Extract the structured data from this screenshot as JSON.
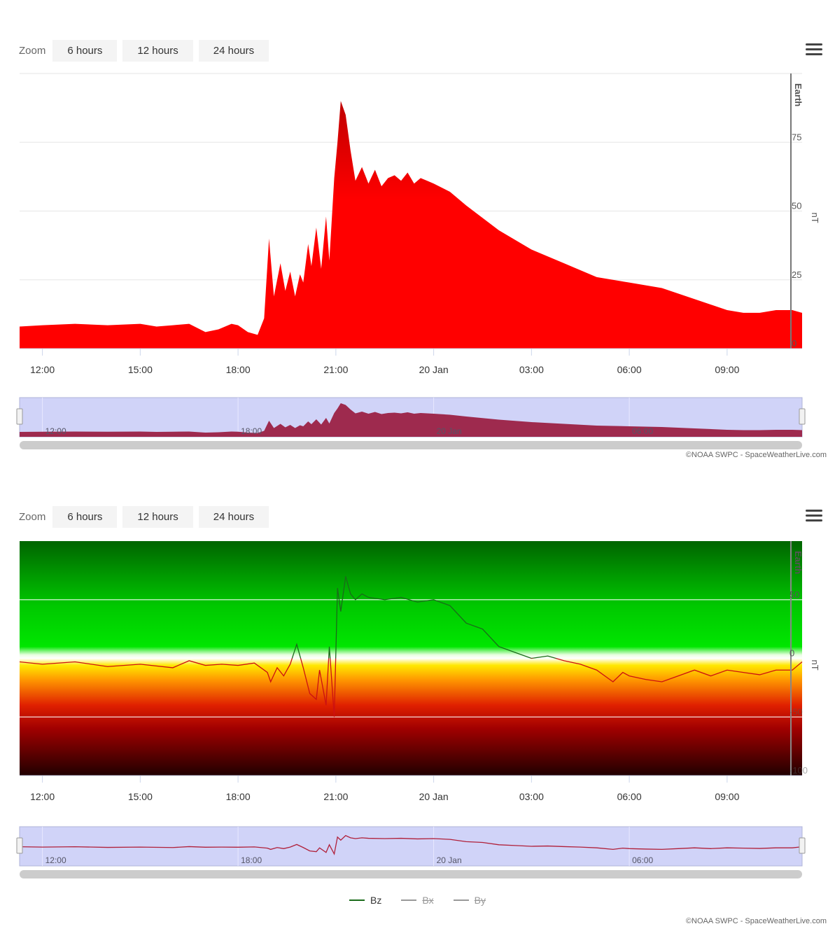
{
  "zoom": {
    "label": "Zoom",
    "buttons": [
      "6 hours",
      "12 hours",
      "24 hours"
    ]
  },
  "credit": "©NOAA SWPC - SpaceWeatherLive.com",
  "x_axis": {
    "ticks": [
      "12:00",
      "15:00",
      "18:00",
      "21:00",
      "20 Jan",
      "03:00",
      "06:00",
      "09:00"
    ],
    "navigator_labels": [
      "12:00",
      "18:00",
      "20 Jan",
      "06:00"
    ]
  },
  "colors": {
    "bt_fill": "#ff0000",
    "bt_fill_dark": "#c00000",
    "navigator_bt": "#9e2a4e",
    "navigator_bg": "#d0d3f8",
    "bz_positive": "#1a6b1a",
    "bz_negative": "#cc1111"
  },
  "chart_data": [
    {
      "type": "area",
      "title": "",
      "plot_band_label": "Earth",
      "ylabel": "nT",
      "ylim": [
        0,
        100
      ],
      "yticks": [
        "0",
        "25",
        "50",
        "75"
      ],
      "x_range_hours": [
        11.3,
        35.3
      ],
      "series": [
        {
          "name": "",
          "x_hours": [
            11.3,
            12,
            13,
            14,
            15,
            15.5,
            16,
            16.5,
            17,
            17.4,
            17.8,
            18,
            18.3,
            18.6,
            18.8,
            18.95,
            19.1,
            19.3,
            19.45,
            19.6,
            19.75,
            19.9,
            20.0,
            20.15,
            20.25,
            20.4,
            20.55,
            20.7,
            20.8,
            20.95,
            21.05,
            21.15,
            21.3,
            21.45,
            21.6,
            21.8,
            22,
            22.2,
            22.4,
            22.6,
            22.8,
            23,
            23.2,
            23.4,
            23.6,
            23.8,
            24,
            24.5,
            25,
            26,
            27,
            28,
            29,
            30,
            31,
            32,
            33,
            33.5,
            34,
            34.5,
            35,
            35.3
          ],
          "values": [
            8,
            8.5,
            9,
            8.5,
            9,
            8,
            8.5,
            9,
            6,
            7,
            9,
            8.5,
            6,
            5,
            11,
            40,
            19,
            31,
            21,
            28,
            19,
            27,
            24,
            38,
            30,
            44,
            29,
            48,
            32,
            62,
            75,
            90,
            85,
            72,
            61,
            66,
            60,
            65,
            59,
            62,
            63,
            61,
            64,
            60,
            62,
            61,
            60,
            57,
            52,
            43,
            36,
            31,
            26,
            24,
            22,
            18,
            14,
            13,
            13,
            14,
            14,
            13
          ]
        }
      ]
    },
    {
      "type": "line",
      "title": "",
      "plot_band_label": "Earth",
      "ylabel": "nT",
      "ylim": [
        -100,
        100
      ],
      "yticks": [
        "-100",
        "-50",
        "0",
        "50"
      ],
      "x_range_hours": [
        11.3,
        35.3
      ],
      "background": "green above 0, yellow/orange/red below 0",
      "series": [
        {
          "name": "Bz",
          "x_hours": [
            11.3,
            12,
            13,
            14,
            15,
            16,
            16.5,
            17,
            17.5,
            18,
            18.5,
            18.9,
            19.0,
            19.2,
            19.4,
            19.6,
            19.8,
            20.0,
            20.2,
            20.4,
            20.5,
            20.7,
            20.8,
            20.95,
            21.05,
            21.15,
            21.3,
            21.45,
            21.6,
            21.8,
            22,
            22.5,
            23,
            23.5,
            24,
            24.5,
            25,
            25.5,
            26,
            26.5,
            27,
            27.5,
            28,
            28.5,
            29,
            29.5,
            29.8,
            30,
            30.5,
            31,
            31.5,
            32,
            32.5,
            33,
            33.5,
            34,
            34.5,
            35,
            35.3
          ],
          "values": [
            -3,
            -5,
            -3,
            -7,
            -5,
            -8,
            -2,
            -6,
            -5,
            -6,
            -4,
            -12,
            -20,
            -8,
            -15,
            -5,
            12,
            -8,
            -30,
            -35,
            -10,
            -40,
            10,
            -50,
            60,
            40,
            70,
            55,
            50,
            55,
            52,
            50,
            52,
            48,
            50,
            45,
            30,
            25,
            10,
            5,
            0,
            2,
            -2,
            -5,
            -10,
            -20,
            -12,
            -15,
            -18,
            -20,
            -15,
            -10,
            -15,
            -10,
            -12,
            -14,
            -10,
            -10,
            -3
          ]
        },
        {
          "name": "Bx",
          "hidden": true,
          "values": []
        },
        {
          "name": "By",
          "hidden": true,
          "values": []
        }
      ],
      "legend": [
        "Bz",
        "Bx",
        "By"
      ]
    }
  ]
}
